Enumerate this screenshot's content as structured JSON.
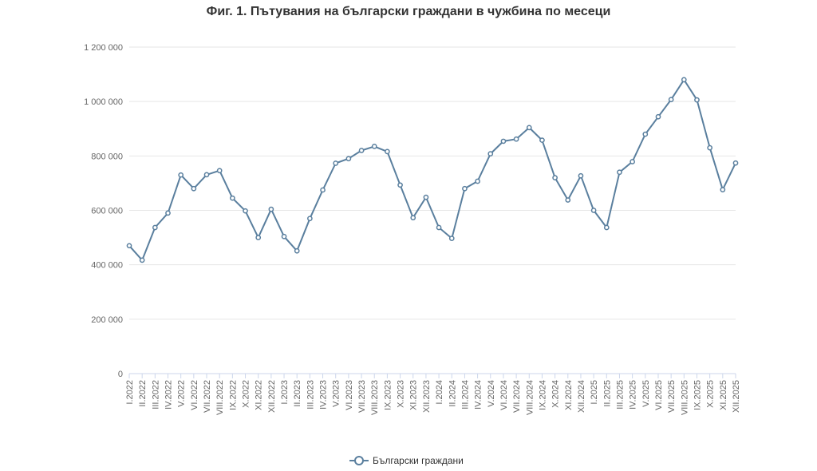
{
  "chart_data": {
    "type": "line",
    "title": "Фиг. 1. Пътувания на български граждани в чужбина по месеци",
    "xlabel": "",
    "ylabel": "",
    "ylim": [
      0,
      1200000
    ],
    "yticks": [
      "0",
      "200 000",
      "400 000",
      "600 000",
      "800 000",
      "1 000 000",
      "1 200 000"
    ],
    "ytick_values": [
      0,
      200000,
      400000,
      600000,
      800000,
      1000000,
      1200000
    ],
    "grid": true,
    "legend_position": "bottom-center",
    "categories": [
      "I.2022",
      "II.2022",
      "III.2022",
      "IV.2022",
      "V.2022",
      "VI.2022",
      "VII.2022",
      "VIII.2022",
      "IX.2022",
      "X.2022",
      "XI.2022",
      "XII.2022",
      "I.2023",
      "II.2023",
      "III.2023",
      "IV.2023",
      "V.2023",
      "VI.2023",
      "VII.2023",
      "VIII.2023",
      "IX.2023",
      "X.2023",
      "XI.2023",
      "XII.2023",
      "I.2024",
      "II.2024",
      "III.2024",
      "IV.2024",
      "V.2024",
      "VI.2024",
      "VII.2024",
      "VIII.2024",
      "IX.2024",
      "X.2024",
      "XI.2024",
      "XII.2024",
      "I.2025",
      "II.2025",
      "III.2025",
      "IV.2025",
      "V.2025",
      "VI.2025",
      "VII.2025",
      "VIII.2025",
      "IX.2025",
      "X.2025",
      "XI.2025",
      "XII.2025"
    ],
    "series": [
      {
        "name": "Български граждани",
        "color": "#5a7f9e",
        "values": [
          470000,
          417000,
          537000,
          590000,
          730000,
          680000,
          731000,
          746000,
          645000,
          598000,
          500000,
          604000,
          504000,
          451000,
          570000,
          675000,
          773000,
          790000,
          820000,
          835000,
          816000,
          693000,
          573000,
          648000,
          537000,
          497000,
          680000,
          707000,
          808000,
          854000,
          862000,
          904000,
          858000,
          720000,
          638000,
          727000,
          600000,
          537000,
          740000,
          779000,
          880000,
          944000,
          1007000,
          1080000,
          1006000,
          830000,
          676000,
          774000
        ]
      }
    ]
  }
}
